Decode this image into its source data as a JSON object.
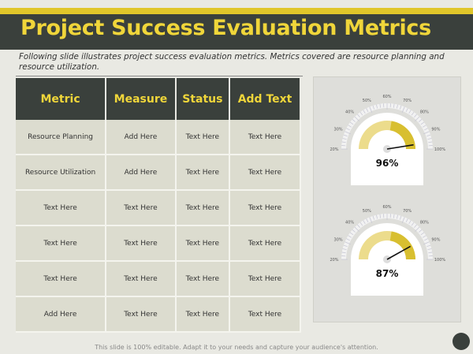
{
  "title": "Project Success Evaluation Metrics",
  "description": "Following slide illustrates project success evaluation metrics. Metrics covered are resource planning and resource utilization.",
  "table": {
    "headers": [
      "Metric",
      "Measure",
      "Status",
      "Add Text"
    ],
    "rows": [
      [
        "Resource Planning",
        "Add Here",
        "Text Here",
        "Text Here"
      ],
      [
        "Resource Utilization",
        "Add Here",
        "Text Here",
        "Text Here"
      ],
      [
        "Text Here",
        "Text Here",
        "Text Here",
        "Text Here"
      ],
      [
        "Text Here",
        "Text Here",
        "Text Here",
        "Text Here"
      ],
      [
        "Text Here",
        "Text Here",
        "Text Here",
        "Text Here"
      ],
      [
        "Add Here",
        "Text Here",
        "Text Here",
        "Text Here"
      ]
    ]
  },
  "gauges": [
    {
      "value": 96,
      "label": "96%"
    },
    {
      "value": 87,
      "label": "87%"
    }
  ],
  "gauge_ticks": [
    "20%",
    "30%",
    "40%",
    "50%",
    "60%",
    "70%",
    "80%",
    "90%",
    "100%"
  ],
  "footer": "This slide is 100% editable. Adapt it to your needs and capture your audience's attention.",
  "colors": {
    "dark": "#3a403c",
    "accent": "#f0d63a"
  }
}
